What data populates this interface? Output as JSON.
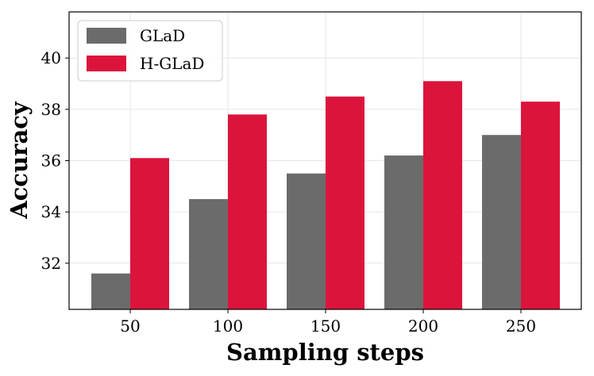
{
  "chart_data": {
    "type": "bar",
    "title": "",
    "xlabel": "Sampling steps",
    "ylabel": "Accuracy",
    "categories": [
      "50",
      "100",
      "150",
      "200",
      "250"
    ],
    "series": [
      {
        "name": "GLaD",
        "color": "#6b6b6b",
        "values": [
          31.6,
          34.5,
          35.5,
          36.2,
          37.0
        ]
      },
      {
        "name": "H-GLaD",
        "color": "#dc143c",
        "values": [
          36.1,
          37.8,
          38.5,
          39.1,
          38.3
        ]
      }
    ],
    "ylim": [
      30.2,
      41.8
    ],
    "yticks": [
      32,
      34,
      36,
      38,
      40
    ],
    "grid": true,
    "legend_position": "top-left"
  }
}
